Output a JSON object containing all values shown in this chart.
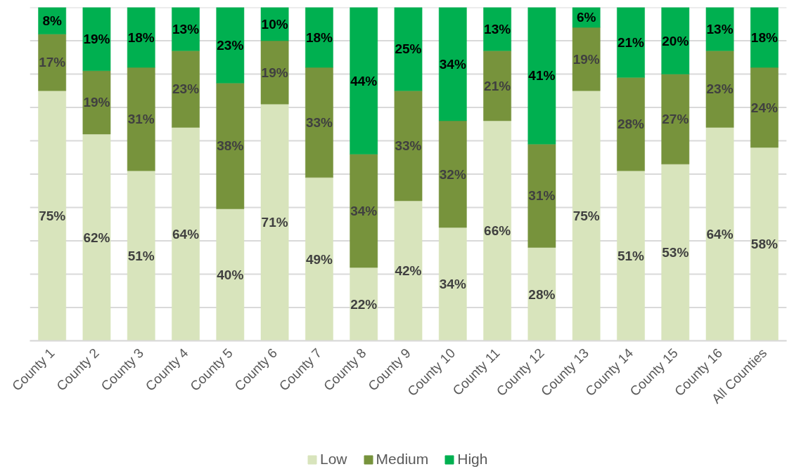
{
  "chart_data": {
    "type": "bar",
    "stacked": true,
    "categories": [
      "County 1",
      "County 2",
      "County 3",
      "County 4",
      "County 5",
      "County 6",
      "County 7",
      "County 8",
      "County 9",
      "County 10",
      "County 11",
      "County 12",
      "County 13",
      "County 14",
      "County 15",
      "County 16",
      "All Counties"
    ],
    "series": [
      {
        "name": "Low",
        "color": "#d8e4bc",
        "values": [
          75,
          62,
          51,
          64,
          39.6,
          71,
          49,
          22,
          42,
          34,
          66,
          28,
          75,
          51,
          53,
          64,
          58
        ],
        "value_labels": [
          "75%",
          "62%",
          "51%",
          "64%",
          "40%",
          "71%",
          "49%",
          "22%",
          "42%",
          "34%",
          "66%",
          "28%",
          "75%",
          "51%",
          "53%",
          "64%",
          "58%"
        ]
      },
      {
        "name": "Medium",
        "color": "#77933c",
        "values": [
          17,
          19,
          31,
          23,
          37.7,
          19,
          33,
          34,
          33,
          32,
          21,
          31,
          19,
          28,
          27,
          23,
          24
        ],
        "value_labels": [
          "17%",
          "19%",
          "31%",
          "23%",
          "38%",
          "19%",
          "33%",
          "34%",
          "33%",
          "32%",
          "21%",
          "31%",
          "19%",
          "28%",
          "27%",
          "23%",
          "24%"
        ]
      },
      {
        "name": "High",
        "color": "#00b050",
        "values": [
          8,
          19,
          18,
          13,
          22.7,
          10,
          18,
          44,
          25,
          34,
          13,
          41,
          6,
          21,
          20,
          13,
          18
        ],
        "value_labels": [
          "8%",
          "19%",
          "18%",
          "13%",
          "23%",
          "10%",
          "18%",
          "44%",
          "25%",
          "34%",
          "13%",
          "41%",
          "6%",
          "21%",
          "20%",
          "13%",
          "18%"
        ]
      }
    ],
    "ylim": [
      0,
      100
    ],
    "yticks": [
      {
        "value": 0,
        "label": null
      },
      {
        "value": 10,
        "label": null
      },
      {
        "value": 20,
        "label": null
      },
      {
        "value": 30,
        "label": null
      },
      {
        "value": 40,
        "label": null
      },
      {
        "value": 50,
        "label": null
      },
      {
        "value": 60,
        "label": null
      },
      {
        "value": 70,
        "label": null
      },
      {
        "value": 80,
        "label": null
      },
      {
        "value": 90,
        "label": null
      },
      {
        "value": 100,
        "label": null
      }
    ],
    "tick_labels": "x",
    "grid": "y",
    "legend": "bottom"
  }
}
